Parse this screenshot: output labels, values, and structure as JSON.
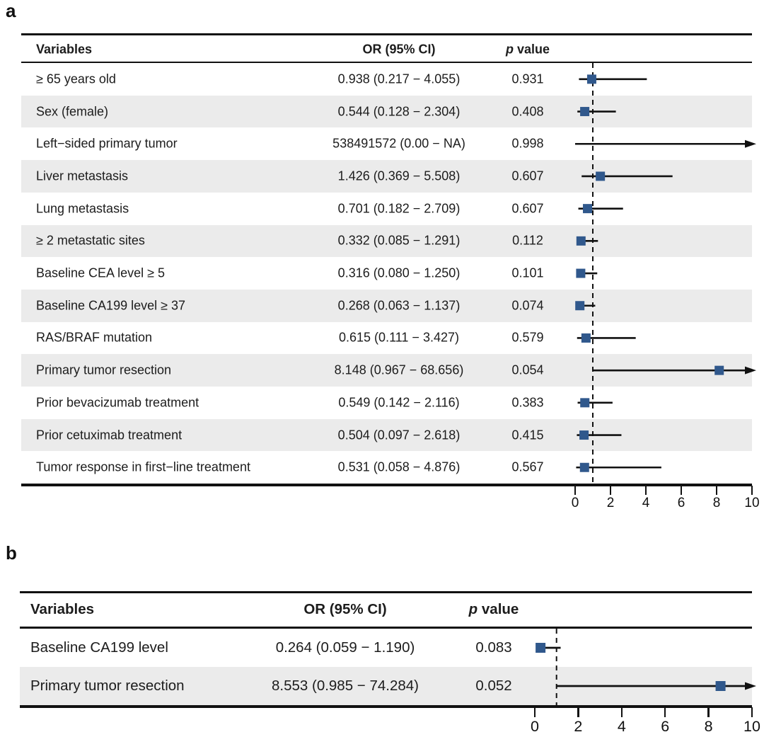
{
  "figure_colors": {
    "marker_blue": "#30588c",
    "band_gray": "#ebebeb",
    "line_black": "#111111",
    "background": "#ffffff"
  },
  "chart_data": [
    {
      "type": "scatter",
      "subtype": "forest_plot",
      "panel_label": "a",
      "columns": [
        "Variables",
        "OR (95% CI)",
        "p value"
      ],
      "xlim": [
        0,
        10
      ],
      "x_ticks": [
        "0",
        "2",
        "4",
        "6",
        "8",
        "10"
      ],
      "reference_line_x": 1,
      "grid": false,
      "legend": false,
      "rows": [
        {
          "variable": "≥ 65 years old",
          "or": 0.938,
          "ci_low": 0.217,
          "ci_high": 4.055,
          "or_ci_text": "0.938 (0.217 − 4.055)",
          "p_value": "0.931",
          "clipped_right": false
        },
        {
          "variable": "Sex (female)",
          "or": 0.544,
          "ci_low": 0.128,
          "ci_high": 2.304,
          "or_ci_text": "0.544 (0.128 − 2.304)",
          "p_value": "0.408",
          "clipped_right": false
        },
        {
          "variable": "Left−sided primary tumor",
          "or": 538491572,
          "ci_low": 0.0,
          "ci_high": null,
          "or_ci_text": "538491572 (0.00 − NA)",
          "p_value": "0.998",
          "clipped_right": true,
          "show_marker": false
        },
        {
          "variable": "Liver metastasis",
          "or": 1.426,
          "ci_low": 0.369,
          "ci_high": 5.508,
          "or_ci_text": "1.426 (0.369 − 5.508)",
          "p_value": "0.607",
          "clipped_right": false
        },
        {
          "variable": "Lung metastasis",
          "or": 0.701,
          "ci_low": 0.182,
          "ci_high": 2.709,
          "or_ci_text": "0.701 (0.182 − 2.709)",
          "p_value": "0.607",
          "clipped_right": false
        },
        {
          "variable": "≥ 2 metastatic sites",
          "or": 0.332,
          "ci_low": 0.085,
          "ci_high": 1.291,
          "or_ci_text": "0.332 (0.085 − 1.291)",
          "p_value": "0.112",
          "clipped_right": false
        },
        {
          "variable": "Baseline CEA level ≥ 5",
          "or": 0.316,
          "ci_low": 0.08,
          "ci_high": 1.25,
          "or_ci_text": "0.316 (0.080 − 1.250)",
          "p_value": "0.101",
          "clipped_right": false
        },
        {
          "variable": "Baseline CA199 level ≥ 37",
          "or": 0.268,
          "ci_low": 0.063,
          "ci_high": 1.137,
          "or_ci_text": "0.268 (0.063 − 1.137)",
          "p_value": "0.074",
          "clipped_right": false
        },
        {
          "variable": "RAS/BRAF mutation",
          "or": 0.615,
          "ci_low": 0.111,
          "ci_high": 3.427,
          "or_ci_text": "0.615 (0.111 − 3.427)",
          "p_value": "0.579",
          "clipped_right": false
        },
        {
          "variable": "Primary tumor resection",
          "or": 8.148,
          "ci_low": 0.967,
          "ci_high": 68.656,
          "or_ci_text": "8.148 (0.967 − 68.656)",
          "p_value": "0.054",
          "clipped_right": true
        },
        {
          "variable": "Prior bevacizumab treatment",
          "or": 0.549,
          "ci_low": 0.142,
          "ci_high": 2.116,
          "or_ci_text": "0.549 (0.142 − 2.116)",
          "p_value": "0.383",
          "clipped_right": false
        },
        {
          "variable": "Prior cetuximab treatment",
          "or": 0.504,
          "ci_low": 0.097,
          "ci_high": 2.618,
          "or_ci_text": "0.504 (0.097 − 2.618)",
          "p_value": "0.415",
          "clipped_right": false
        },
        {
          "variable": "Tumor response in first−line treatment",
          "or": 0.531,
          "ci_low": 0.058,
          "ci_high": 4.876,
          "or_ci_text": "0.531 (0.058 − 4.876)",
          "p_value": "0.567",
          "clipped_right": false
        }
      ]
    },
    {
      "type": "scatter",
      "subtype": "forest_plot",
      "panel_label": "b",
      "columns": [
        "Variables",
        "OR (95% CI)",
        "p value"
      ],
      "xlim": [
        0,
        10
      ],
      "x_ticks": [
        "0",
        "2",
        "4",
        "6",
        "8",
        "10"
      ],
      "reference_line_x": 1,
      "grid": false,
      "legend": false,
      "rows": [
        {
          "variable": "Baseline CA199 level",
          "or": 0.264,
          "ci_low": 0.059,
          "ci_high": 1.19,
          "or_ci_text": "0.264 (0.059 − 1.190)",
          "p_value": "0.083",
          "clipped_right": false
        },
        {
          "variable": "Primary tumor resection",
          "or": 8.553,
          "ci_low": 0.985,
          "ci_high": 74.284,
          "or_ci_text": "8.553 (0.985 − 74.284)",
          "p_value": "0.052",
          "clipped_right": true
        }
      ]
    }
  ]
}
